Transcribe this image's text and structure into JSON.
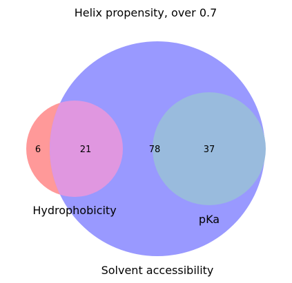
{
  "chart_data": {
    "type": "venn",
    "title": "Helix propensity, over 0.7",
    "sets": [
      {
        "id": "A",
        "name": "Hydrophobicity",
        "color": "#ff9999"
      },
      {
        "id": "B",
        "name": "Solvent accessibility",
        "color": "#9999ff"
      },
      {
        "id": "C",
        "name": "pKa",
        "color": "#99bbdd"
      }
    ],
    "regions": [
      {
        "sets": [
          "A"
        ],
        "value": 6,
        "color": "#ff9999"
      },
      {
        "sets": [
          "A",
          "B"
        ],
        "value": 21,
        "color": "#e097e0"
      },
      {
        "sets": [
          "B"
        ],
        "value": 78,
        "color": "#9999ff"
      },
      {
        "sets": [
          "B",
          "C"
        ],
        "value": 37,
        "color": "#99bbdd"
      }
    ]
  }
}
